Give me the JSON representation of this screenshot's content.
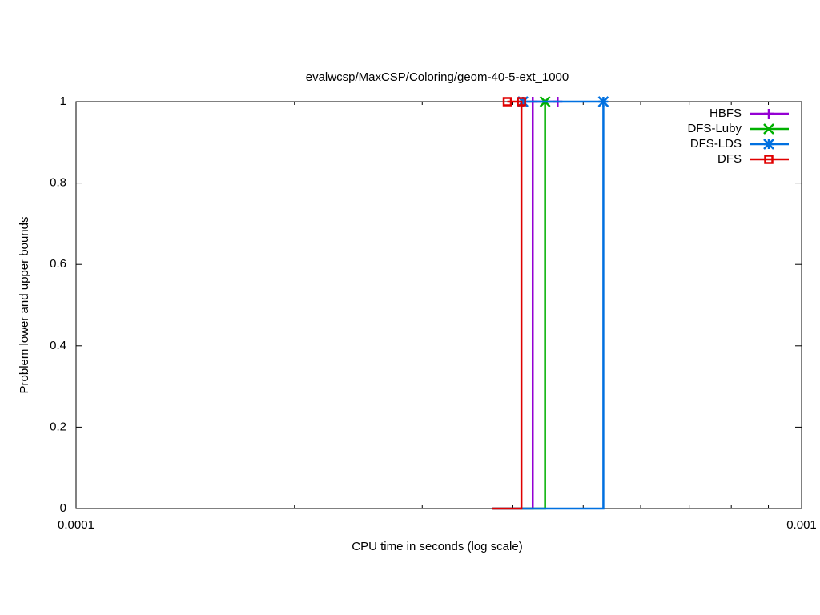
{
  "chart_data": {
    "type": "line",
    "title": "evalwcsp/MaxCSP/Coloring/geom-40-5-ext_1000",
    "x_label": "CPU time in seconds (log scale)",
    "y_label": "Problem lower and upper bounds",
    "xscale": "log",
    "xlim": [
      0.0001,
      0.001
    ],
    "xticks": [
      0.0001,
      0.001
    ],
    "ylim": [
      0,
      1
    ],
    "yticks": [
      0,
      0.2,
      0.4,
      0.6,
      0.8,
      1
    ],
    "grid": false,
    "legend": "top-right",
    "series": [
      {
        "name": "HBFS",
        "color": "#9400d3",
        "marker": "plus",
        "x": [
          0.000375,
          0.000426,
          0.000426,
          0.000461
        ],
        "values": [
          0,
          0,
          1,
          1
        ]
      },
      {
        "name": "DFS-Luby",
        "color": "#00b000",
        "marker": "cross",
        "x": [
          0.000375,
          0.000443,
          0.000443
        ],
        "values": [
          0,
          0,
          1
        ]
      },
      {
        "name": "DFS-LDS",
        "color": "#0070e0",
        "marker": "star",
        "x": [
          0.000375,
          0.000533,
          0.000533,
          0.000413
        ],
        "values": [
          0,
          0,
          1,
          1
        ]
      },
      {
        "name": "DFS",
        "color": "#e00000",
        "marker": "square",
        "x": [
          0.000375,
          0.000411,
          0.000411,
          0.000393
        ],
        "values": [
          0,
          0,
          1,
          1
        ]
      }
    ]
  }
}
